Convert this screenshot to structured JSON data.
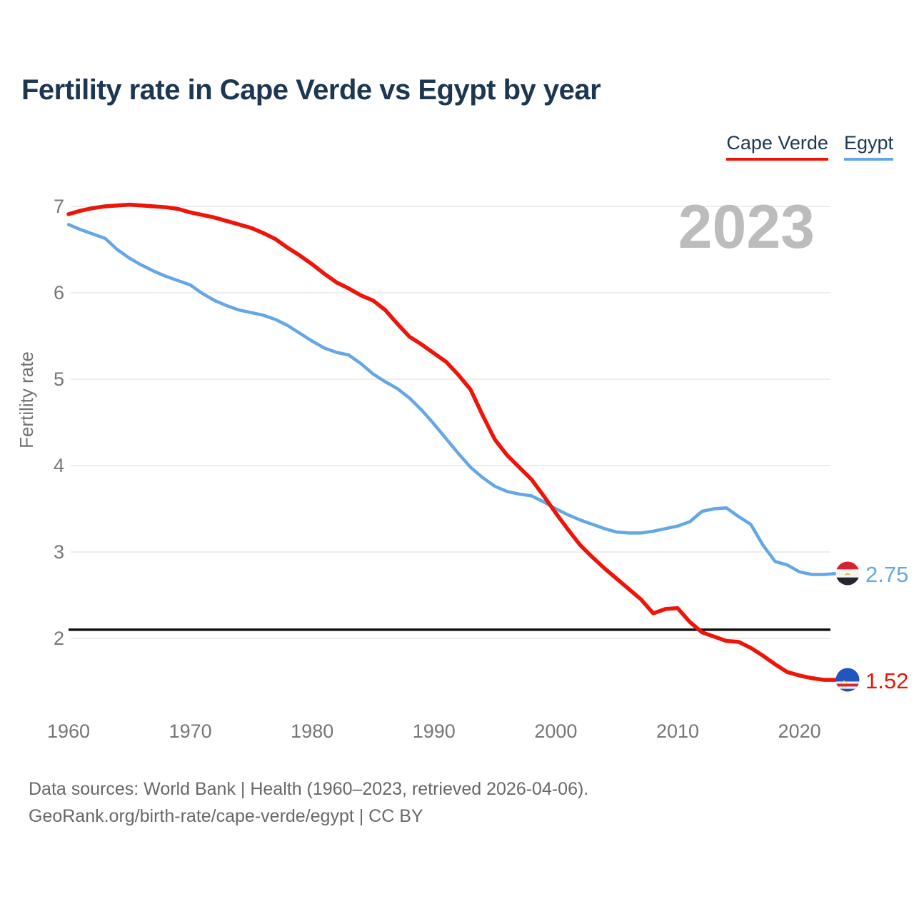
{
  "title": "Fertility rate in Cape Verde vs Egypt by year",
  "legend": [
    {
      "label": "Cape Verde",
      "color": "#ee1408"
    },
    {
      "label": "Egypt",
      "color": "#64a7e7"
    }
  ],
  "end_labels": {
    "cape_verde": "1.52",
    "egypt": "2.75"
  },
  "footer": {
    "line1": "Data sources: World Bank | Health (1960–2023, retrieved 2026-04-06).",
    "line2": "GeoRank.org/birth-rate/cape-verde/egypt | CC BY"
  },
  "colors": {
    "title": "#1d3752",
    "axis_text": "#767676",
    "gridline": "#ededed",
    "watermark": "#bcbcbc",
    "reference_line": "#111111"
  },
  "chart_data": {
    "type": "line",
    "title": "Fertility rate in Cape Verde vs Egypt by year",
    "ylabel": "Fertility rate",
    "xlabel": "",
    "watermark": "2023",
    "grid": "horizontal",
    "legend_position": "top-right",
    "ylim": [
      1.3,
      7.25
    ],
    "y_ticks": [
      7,
      6,
      5,
      4,
      3,
      2
    ],
    "x_ticks": [
      1960,
      1970,
      1980,
      1990,
      2000,
      2010,
      2020
    ],
    "reference_line": 2.1,
    "x": [
      1960,
      1961,
      1962,
      1963,
      1964,
      1965,
      1966,
      1967,
      1968,
      1969,
      1970,
      1971,
      1972,
      1973,
      1974,
      1975,
      1976,
      1977,
      1978,
      1979,
      1980,
      1981,
      1982,
      1983,
      1984,
      1985,
      1986,
      1987,
      1988,
      1989,
      1990,
      1991,
      1992,
      1993,
      1994,
      1995,
      1996,
      1997,
      1998,
      1999,
      2000,
      2001,
      2002,
      2003,
      2004,
      2005,
      2006,
      2007,
      2008,
      2009,
      2010,
      2011,
      2012,
      2013,
      2014,
      2015,
      2016,
      2017,
      2018,
      2019,
      2020,
      2021,
      2022,
      2023
    ],
    "series": [
      {
        "name": "Cape Verde",
        "color": "#ee1408",
        "end_label": "1.52",
        "values": [
          6.91,
          6.95,
          6.98,
          7.0,
          7.01,
          7.02,
          7.01,
          7.0,
          6.99,
          6.97,
          6.93,
          6.9,
          6.87,
          6.83,
          6.79,
          6.75,
          6.69,
          6.62,
          6.52,
          6.43,
          6.33,
          6.22,
          6.12,
          6.05,
          5.97,
          5.91,
          5.8,
          5.64,
          5.49,
          5.4,
          5.3,
          5.2,
          5.05,
          4.88,
          4.58,
          4.3,
          4.12,
          3.98,
          3.84,
          3.65,
          3.45,
          3.26,
          3.08,
          2.94,
          2.81,
          2.69,
          2.57,
          2.45,
          2.29,
          2.34,
          2.35,
          2.19,
          2.07,
          2.02,
          1.97,
          1.96,
          1.89,
          1.8,
          1.7,
          1.61,
          1.57,
          1.54,
          1.52,
          1.52
        ]
      },
      {
        "name": "Egypt",
        "color": "#64a7e7",
        "end_label": "2.75",
        "values": [
          6.79,
          6.73,
          6.68,
          6.63,
          6.5,
          6.4,
          6.32,
          6.25,
          6.19,
          6.14,
          6.09,
          5.99,
          5.91,
          5.85,
          5.8,
          5.77,
          5.74,
          5.69,
          5.62,
          5.53,
          5.44,
          5.36,
          5.31,
          5.28,
          5.18,
          5.06,
          4.97,
          4.89,
          4.78,
          4.64,
          4.48,
          4.31,
          4.14,
          3.98,
          3.86,
          3.76,
          3.7,
          3.67,
          3.65,
          3.58,
          3.5,
          3.43,
          3.37,
          3.32,
          3.27,
          3.23,
          3.22,
          3.22,
          3.24,
          3.27,
          3.3,
          3.35,
          3.47,
          3.5,
          3.51,
          3.41,
          3.32,
          3.08,
          2.89,
          2.85,
          2.77,
          2.74,
          2.74,
          2.75
        ]
      }
    ]
  }
}
